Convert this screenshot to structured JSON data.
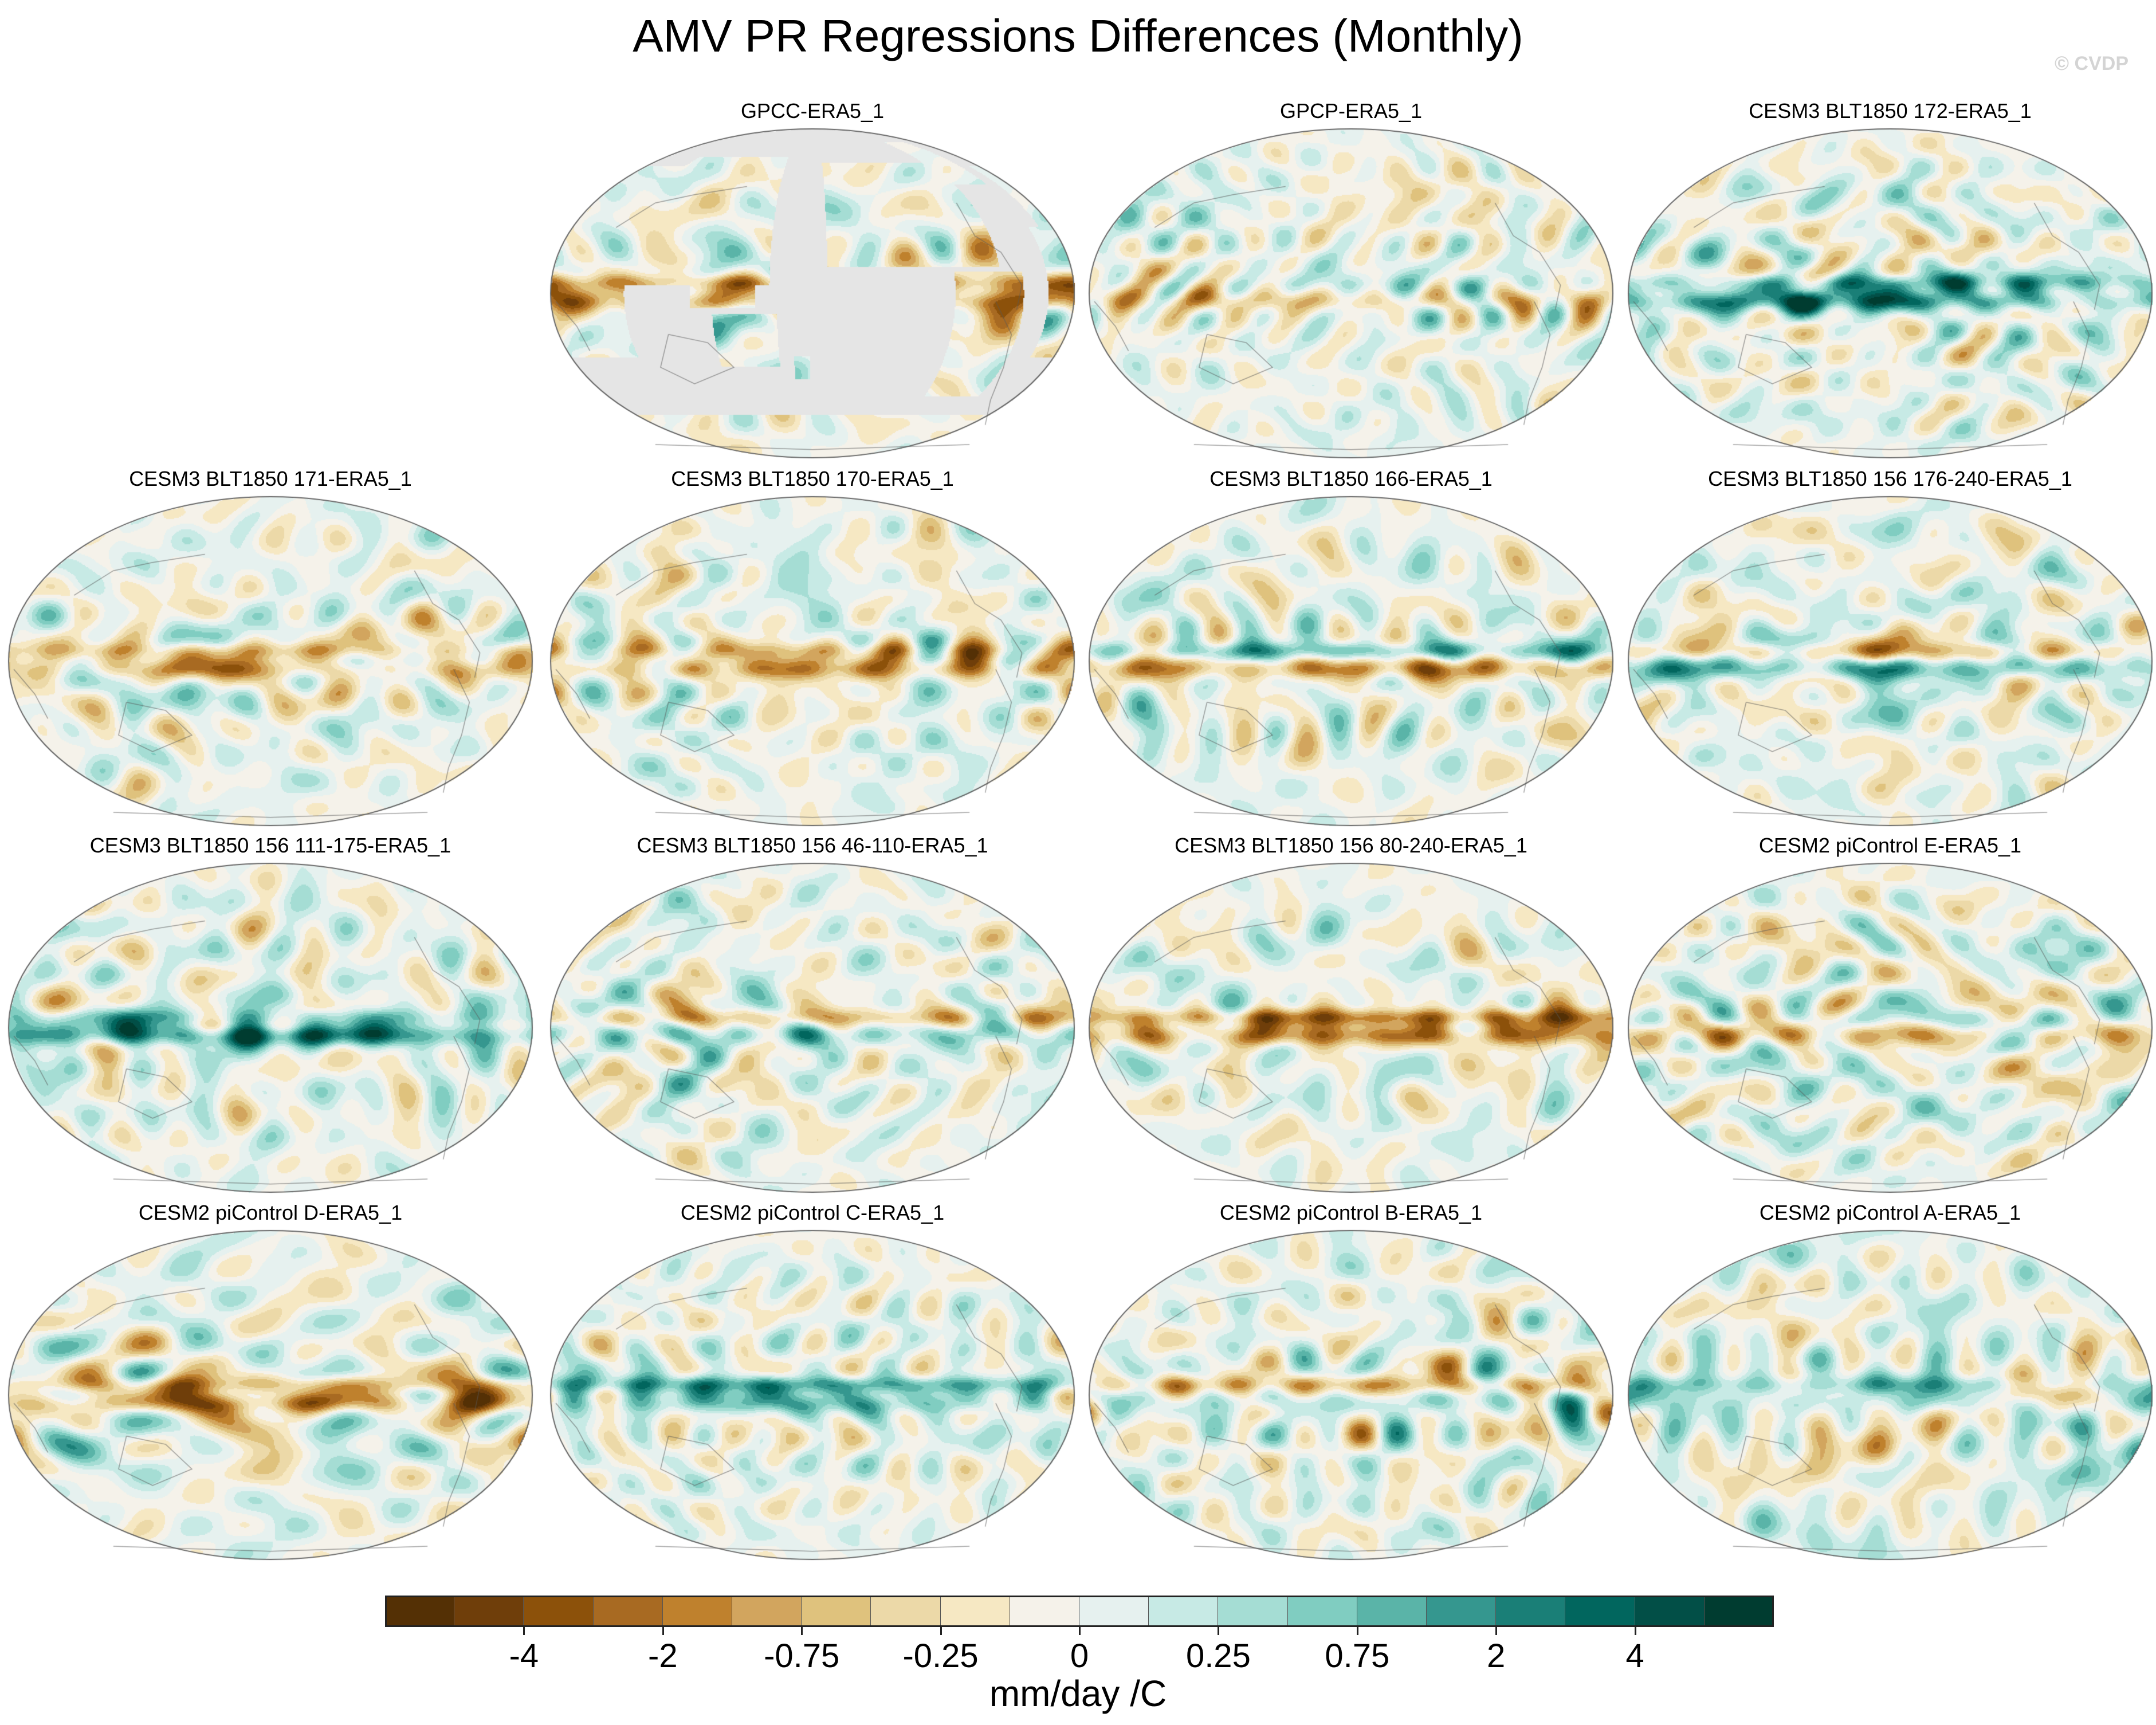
{
  "title": "AMV PR Regressions Differences (Monthly)",
  "copyright": "© CVDP",
  "panels": [
    {
      "label": "GPCC-ERA5_1",
      "mode": "land",
      "seed": 11
    },
    {
      "label": "GPCP-ERA5_1",
      "mode": "full",
      "seed": 23
    },
    {
      "label": "CESM3 BLT1850 172-ERA5_1",
      "mode": "full",
      "seed": 37
    },
    {
      "label": "CESM3 BLT1850 171-ERA5_1",
      "mode": "full",
      "seed": 41
    },
    {
      "label": "CESM3 BLT1850 170-ERA5_1",
      "mode": "full",
      "seed": 53
    },
    {
      "label": "CESM3 BLT1850 166-ERA5_1",
      "mode": "full",
      "seed": 67
    },
    {
      "label": "CESM3 BLT1850 156 176-240-ERA5_1",
      "mode": "full",
      "seed": 71
    },
    {
      "label": "CESM3 BLT1850 156 111-175-ERA5_1",
      "mode": "full",
      "seed": 83
    },
    {
      "label": "CESM3 BLT1850 156 46-110-ERA5_1",
      "mode": "full",
      "seed": 97
    },
    {
      "label": "CESM3 BLT1850 156 80-240-ERA5_1",
      "mode": "full",
      "seed": 101
    },
    {
      "label": "CESM2 piControl E-ERA5_1",
      "mode": "full",
      "seed": 113
    },
    {
      "label": "CESM2 piControl D-ERA5_1",
      "mode": "full",
      "seed": 127
    },
    {
      "label": "CESM2 piControl C-ERA5_1",
      "mode": "full",
      "seed": 131
    },
    {
      "label": "CESM2 piControl B-ERA5_1",
      "mode": "full",
      "seed": 149
    },
    {
      "label": "CESM2 piControl A-ERA5_1",
      "mode": "full",
      "seed": 157
    }
  ],
  "colorbar": {
    "colors": [
      "#543005",
      "#6f3e0a",
      "#8c510a",
      "#a86a22",
      "#bf812d",
      "#d2a55e",
      "#dfc27d",
      "#ecd9a8",
      "#f6e8c3",
      "#f5f2ea",
      "#e6f1ef",
      "#c7eae5",
      "#a5ddd4",
      "#80cdc1",
      "#5ab4a8",
      "#35978f",
      "#1a7f77",
      "#01665e",
      "#024f47",
      "#003c30"
    ],
    "tick_labels": [
      "-4",
      "-2",
      "-0.75",
      "-0.25",
      "0",
      "0.25",
      "0.75",
      "2",
      "4"
    ],
    "tick_boundaries": [
      2,
      4,
      6,
      8,
      10,
      12,
      14,
      16,
      18
    ],
    "units": "mm/day /C"
  }
}
